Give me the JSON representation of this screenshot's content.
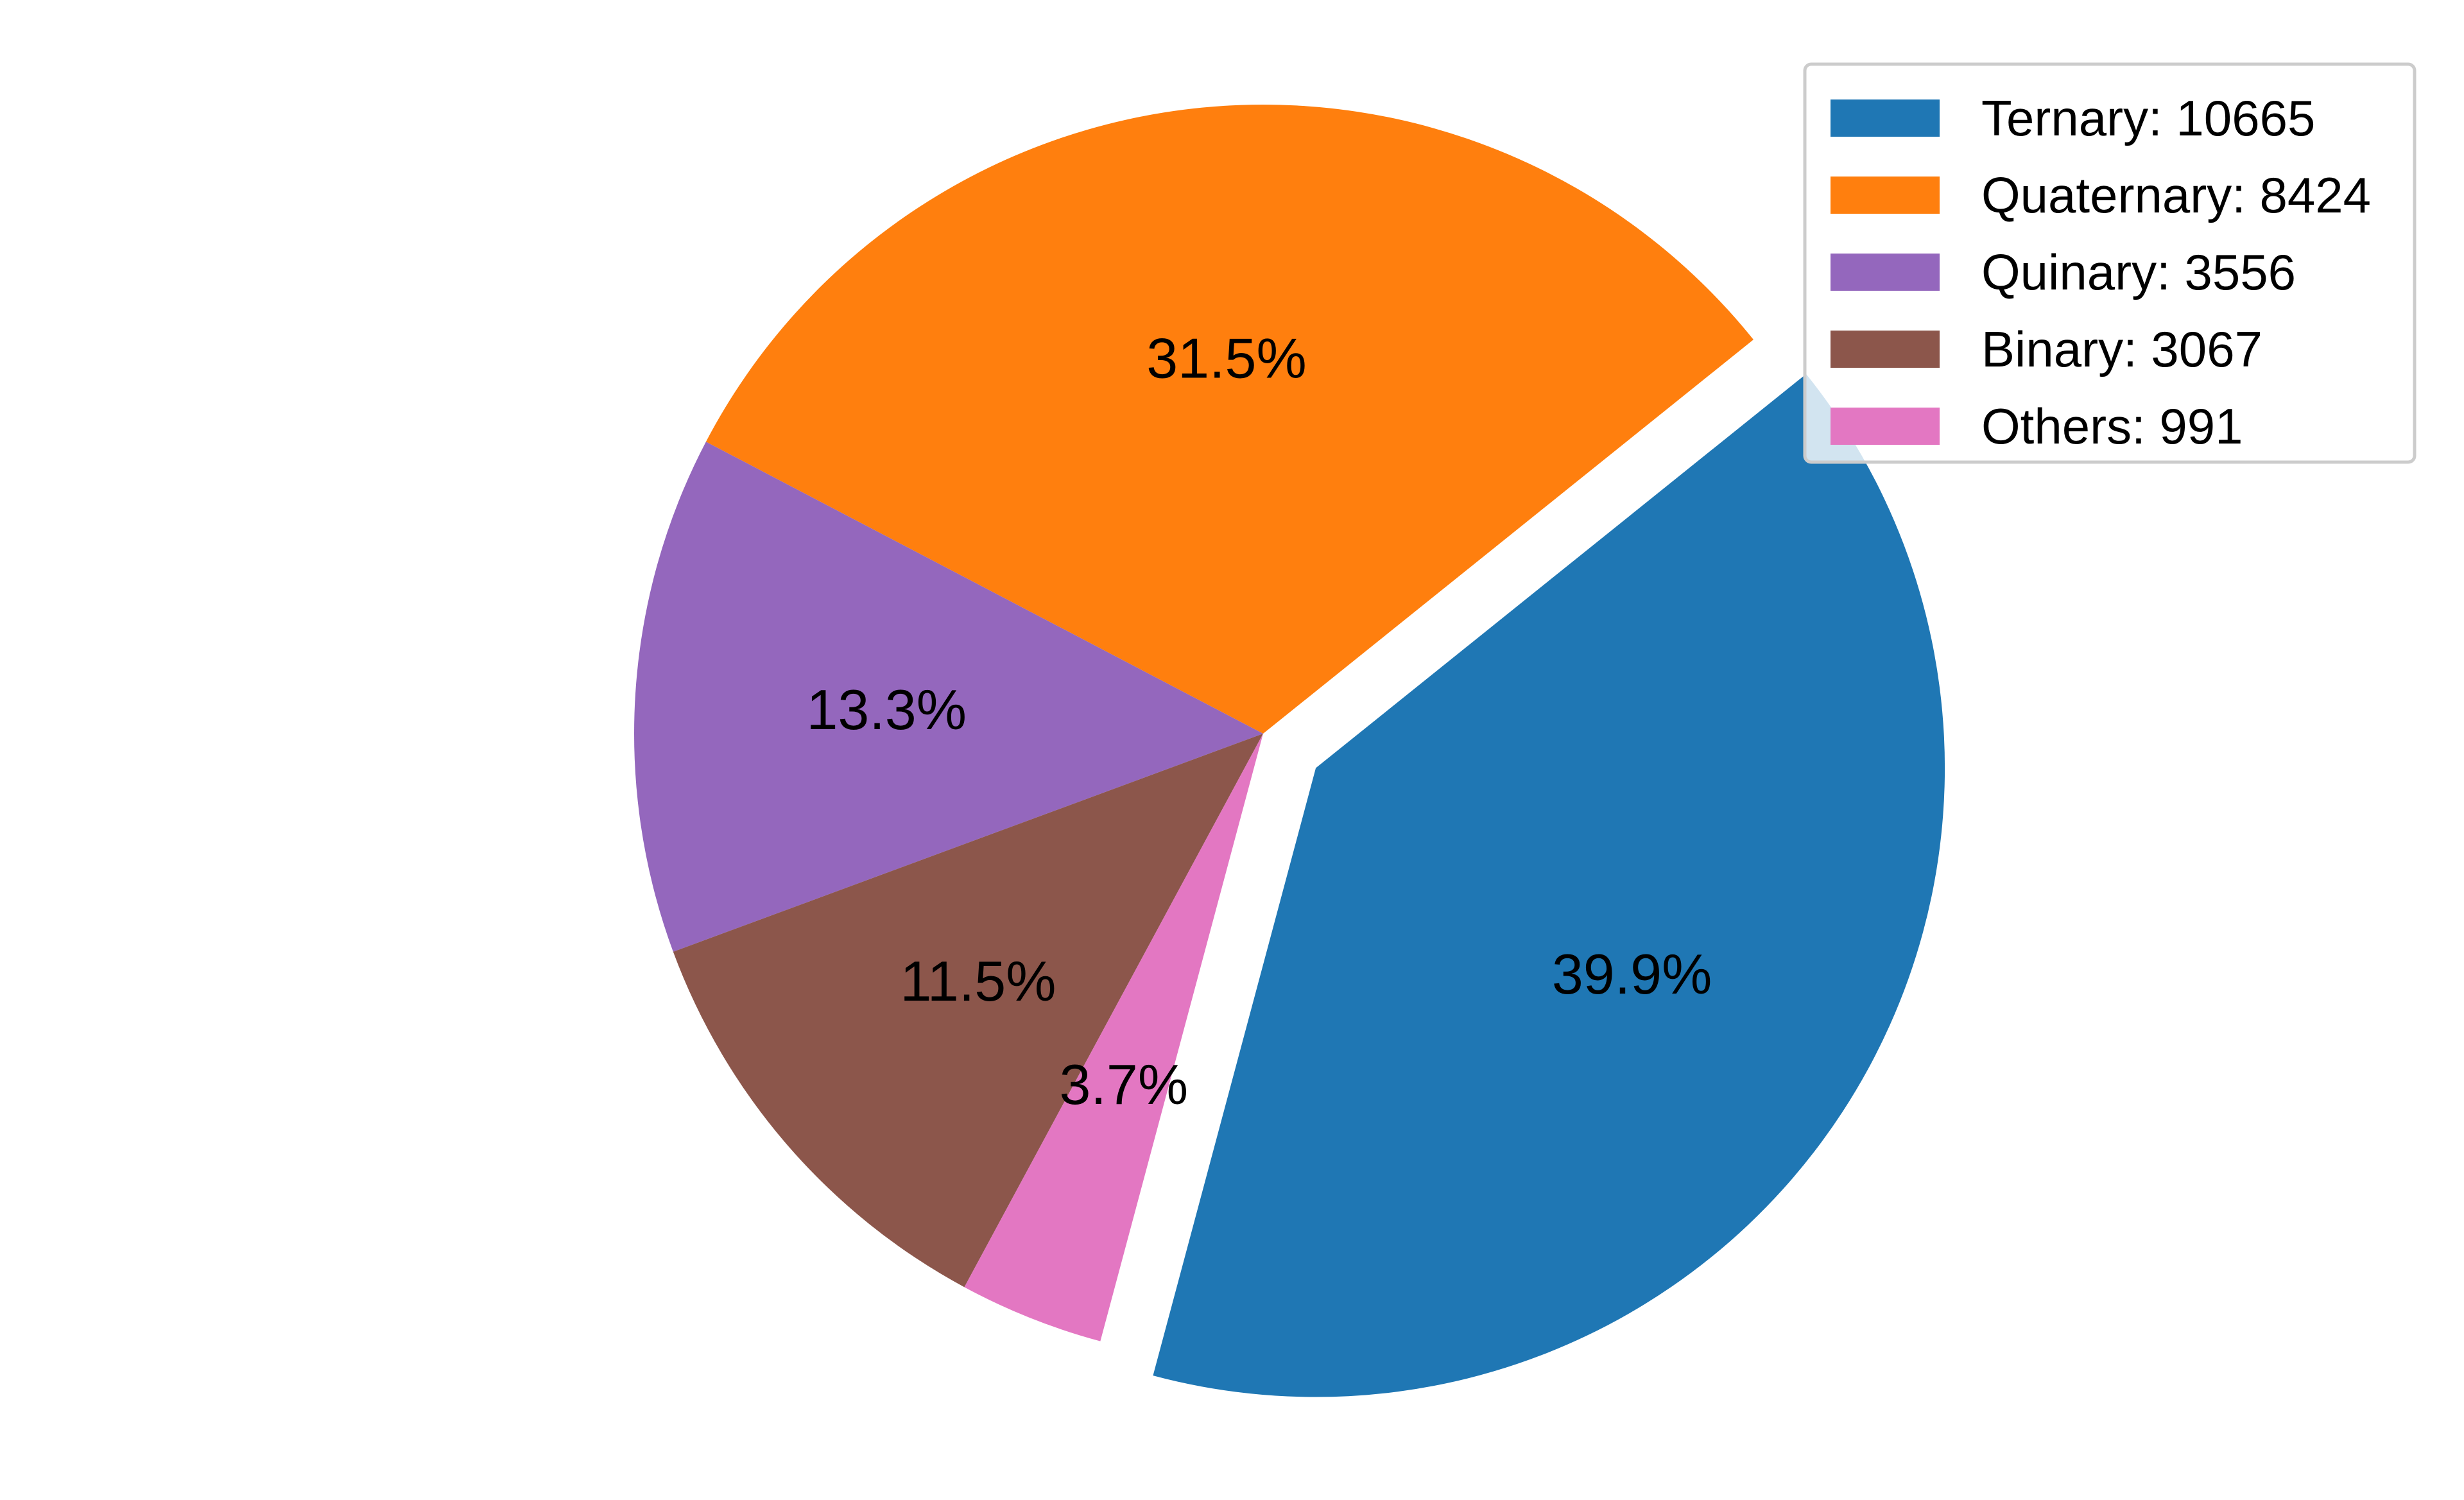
{
  "chart_data": {
    "type": "pie",
    "title": "",
    "slices": [
      {
        "name": "Ternary",
        "value": 10665,
        "color": "#1f77b4",
        "percent_label": "39.9%",
        "legend_label": "Ternary: 10665",
        "exploded": true
      },
      {
        "name": "Quaternary",
        "value": 8424,
        "color": "#ff7f0e",
        "percent_label": "31.5%",
        "legend_label": "Quaternary: 8424",
        "exploded": false
      },
      {
        "name": "Quinary",
        "value": 3556,
        "color": "#9467bd",
        "percent_label": "13.3%",
        "legend_label": "Quinary: 3556",
        "exploded": false
      },
      {
        "name": "Binary",
        "value": 3067,
        "color": "#8c564b",
        "percent_label": "11.5%",
        "legend_label": "Binary: 3067",
        "exploded": false
      },
      {
        "name": "Others",
        "value": 991,
        "color": "#e377c2",
        "percent_label": "3.7%",
        "legend_label": "Others: 991",
        "exploded": false
      }
    ],
    "start_angle_deg": 255,
    "legend_position": "top-right"
  }
}
